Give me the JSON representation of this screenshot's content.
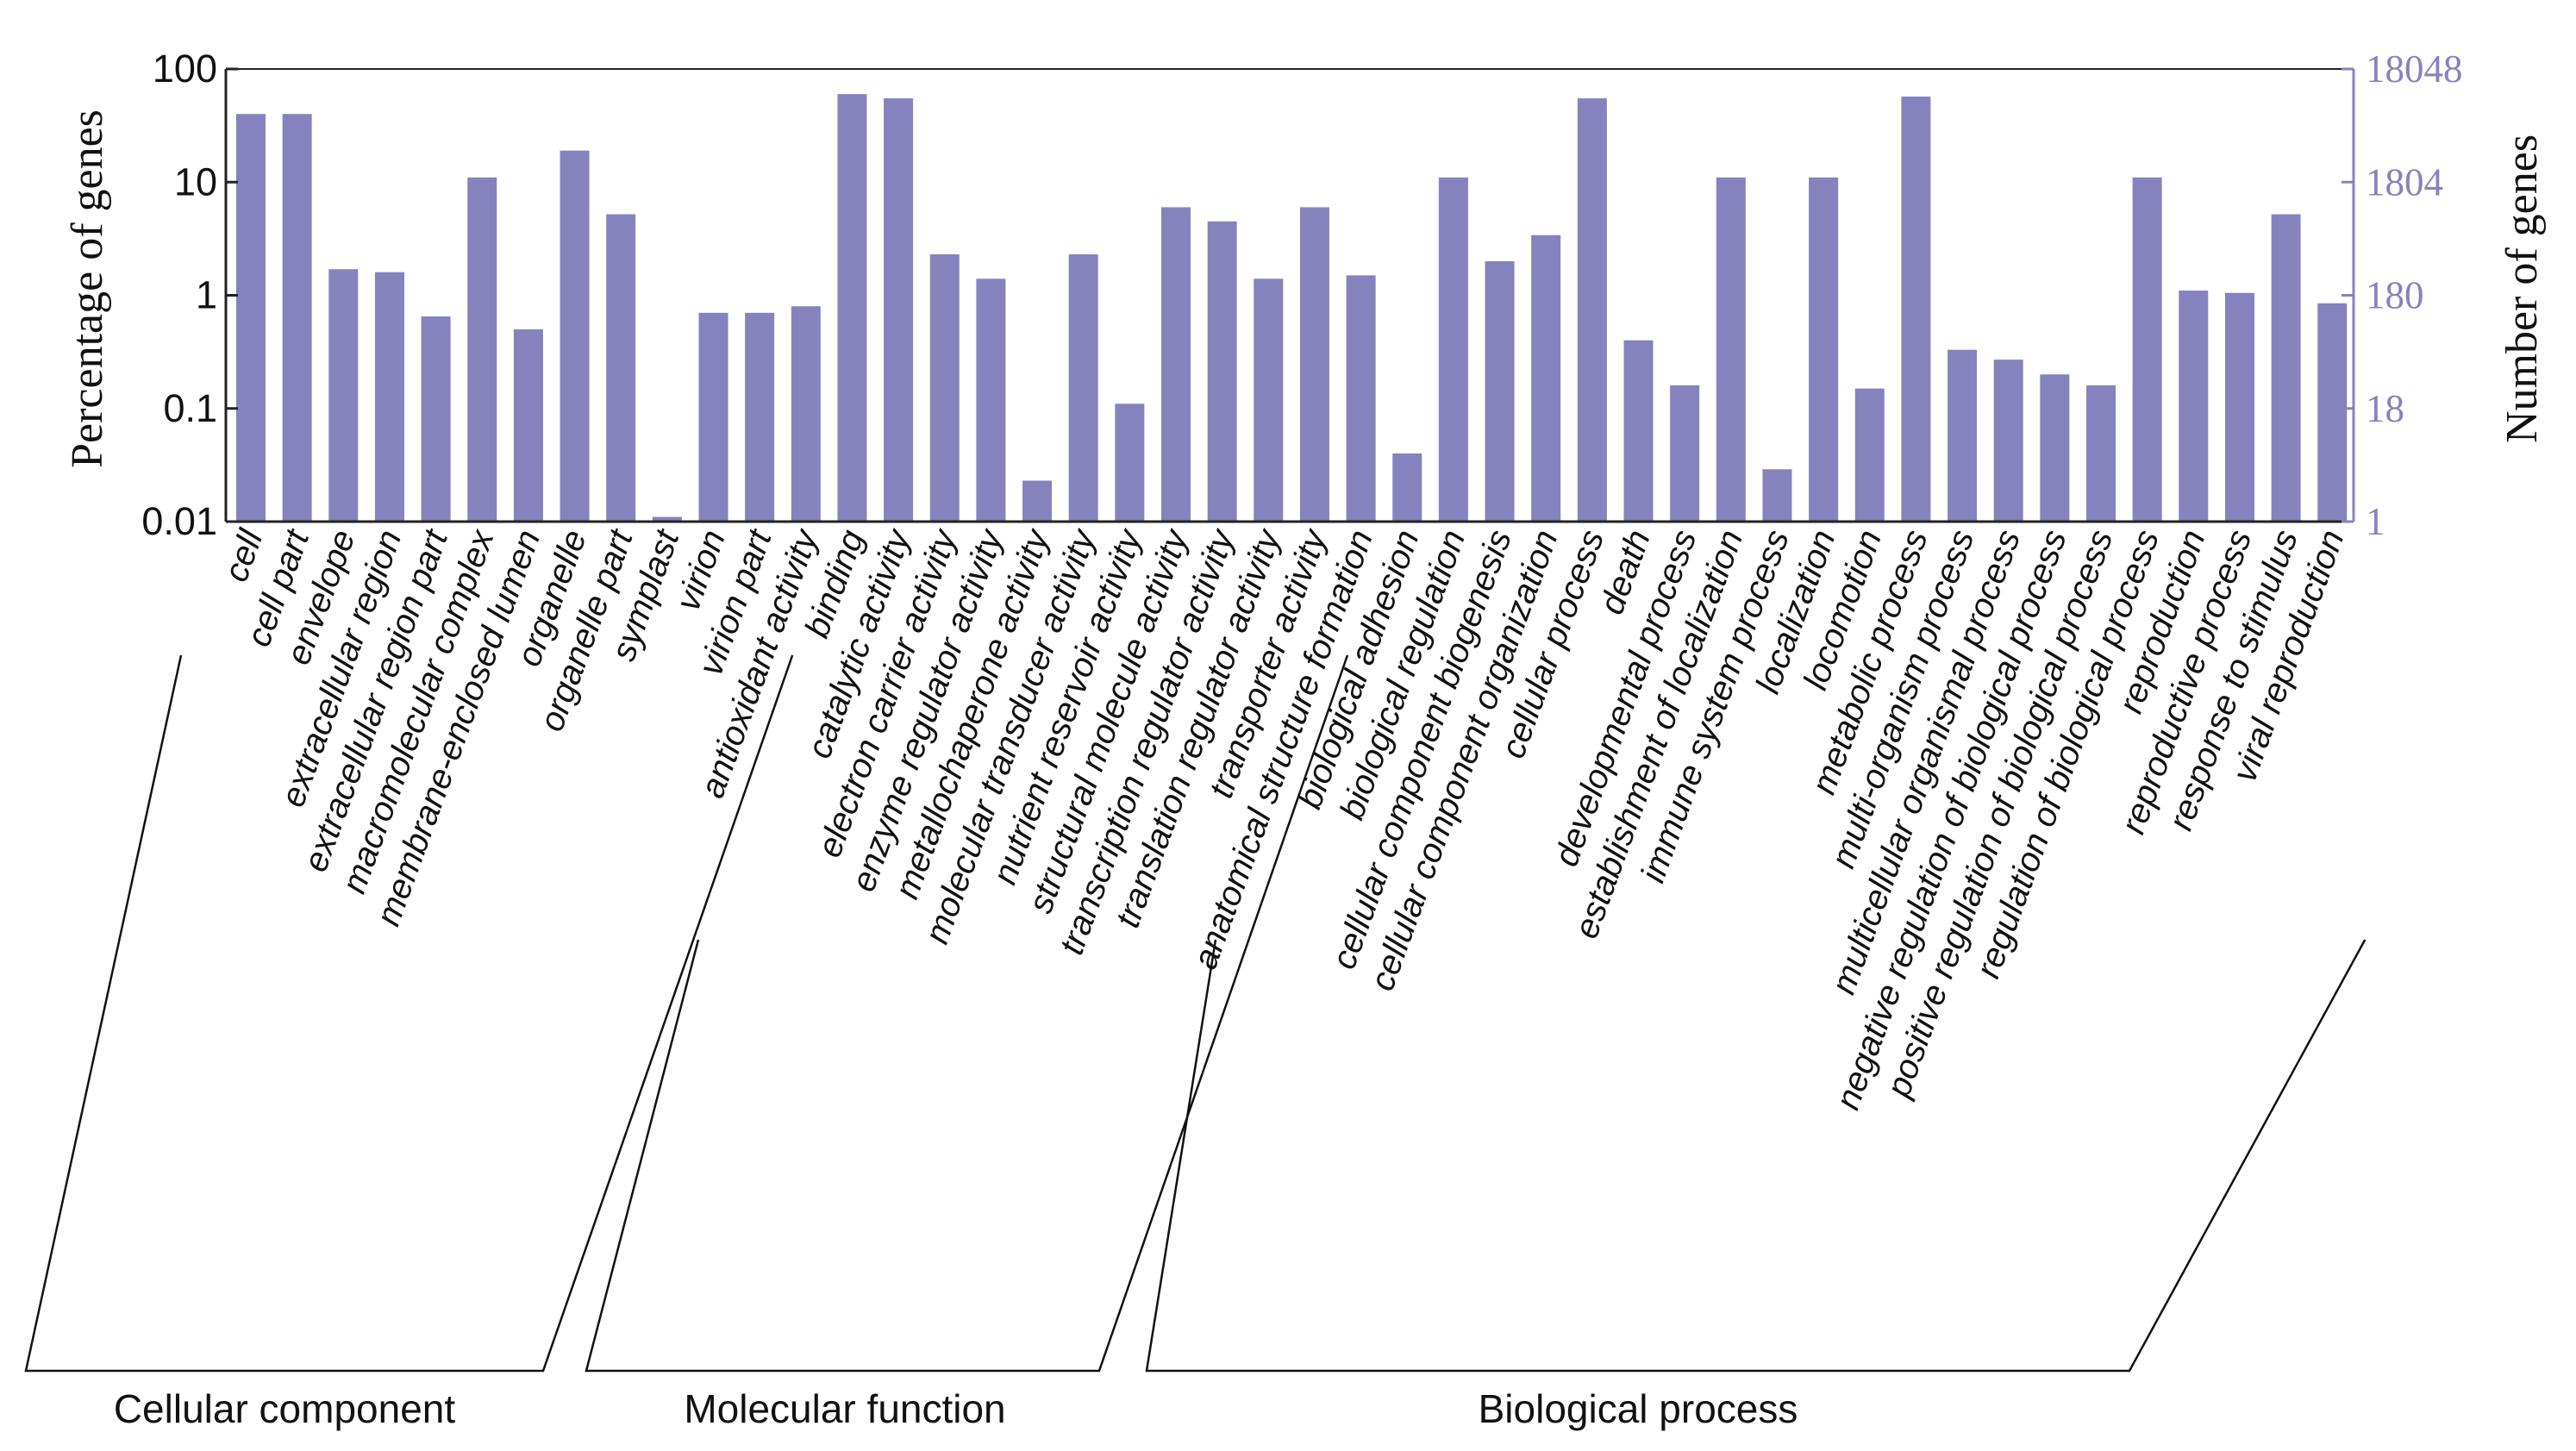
{
  "chart_data": {
    "type": "bar",
    "ylabel": "Percentage of genes",
    "y2label": "Number of genes",
    "yscale": "log",
    "ylim": [
      0.01,
      100
    ],
    "yticks": [
      "100",
      "10",
      "1",
      "0.1",
      "0.01"
    ],
    "y2ticks": [
      "18048",
      "1804",
      "180",
      "18",
      "1"
    ],
    "bar_color": "#8682bd",
    "right_axis_color": "#8682bd",
    "categories": [
      "cell",
      "cell part",
      "envelope",
      "extracellular region",
      "extracellular region part",
      "macromolecular complex",
      "membrane-enclosed lumen",
      "organelle",
      "organelle part",
      "symplast",
      "virion",
      "virion part",
      "antioxidant activity",
      "binding",
      "catalytic activity",
      "electron carrier activity",
      "enzyme regulator activity",
      "metallochaperone activity",
      "molecular transducer activity",
      "nutrient reservoir activity",
      "structural molecule activity",
      "transcription regulator activity",
      "translation regulator activity",
      "transporter activity",
      "anatomical structure formation",
      "biological adhesion",
      "biological regulation",
      "cellular component biogenesis",
      "cellular component organization",
      "cellular process",
      "death",
      "developmental process",
      "establishment of localization",
      "immune system process",
      "localization",
      "locomotion",
      "metabolic process",
      "multi-organism process",
      "multicellular organismal process",
      "negative regulation of biological process",
      "positive regulation of biological process",
      "regulation of biological process",
      "reproduction",
      "reproductive process",
      "response to stimulus",
      "viral reproduction"
    ],
    "values": [
      40,
      40,
      1.7,
      1.6,
      0.65,
      11,
      0.5,
      19,
      5.2,
      0.011,
      0.7,
      0.7,
      0.8,
      60,
      55,
      2.3,
      1.4,
      0.023,
      2.3,
      0.11,
      6,
      4.5,
      1.4,
      6,
      1.5,
      0.04,
      11,
      2,
      3.4,
      55,
      0.4,
      0.16,
      11,
      0.029,
      11,
      0.15,
      57,
      0.33,
      0.27,
      0.2,
      0.16,
      11,
      1.1,
      1.05,
      5.2,
      0.85
    ],
    "groups": [
      {
        "name": "Cellular component",
        "start": 0,
        "end": 11
      },
      {
        "name": "Molecular function",
        "start": 12,
        "end": 23
      },
      {
        "name": "Biological process",
        "start": 24,
        "end": 45
      }
    ]
  }
}
